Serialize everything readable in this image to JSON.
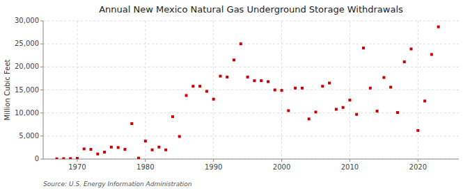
{
  "chart_data": {
    "type": "scatter",
    "title": "Annual New Mexico Natural  Gas Underground Storage Withdrawals",
    "ylabel": "Million Cubic Feet",
    "source": "Source: U.S. Energy Information Administration",
    "x": [
      1967,
      1968,
      1969,
      1970,
      1971,
      1972,
      1973,
      1974,
      1975,
      1976,
      1977,
      1978,
      1979,
      1980,
      1981,
      1982,
      1983,
      1984,
      1985,
      1986,
      1987,
      1988,
      1989,
      1990,
      1991,
      1992,
      1993,
      1994,
      1995,
      1996,
      1997,
      1998,
      1999,
      2000,
      2001,
      2002,
      2003,
      2004,
      2005,
      2006,
      2007,
      2008,
      2009,
      2010,
      2011,
      2012,
      2013,
      2014,
      2015,
      2016,
      2017,
      2018,
      2019,
      2020,
      2021,
      2022,
      2023
    ],
    "values": [
      50,
      80,
      100,
      150,
      2200,
      2100,
      1100,
      1500,
      2600,
      2500,
      2100,
      7700,
      200,
      3900,
      2000,
      2600,
      2000,
      9200,
      4900,
      13800,
      15800,
      15800,
      14700,
      13000,
      18000,
      17800,
      21500,
      25000,
      17800,
      17000,
      17000,
      16800,
      15000,
      14900,
      10500,
      15400,
      15400,
      8700,
      10200,
      15800,
      16500,
      10800,
      11200,
      12800,
      9700,
      24100,
      15400,
      10400,
      17700,
      15600,
      10100,
      21100,
      23900,
      6200,
      12600,
      22700,
      28700
    ],
    "color": "#cc0000",
    "marker": "square",
    "xlim": [
      1965,
      2026
    ],
    "ylim": [
      0,
      30000
    ],
    "xticks": [
      1970,
      1980,
      1990,
      2000,
      2010,
      2020
    ],
    "yticks": [
      0,
      {
        "value": 5000,
        "label": "5,000"
      },
      {
        "value": 10000,
        "label": "10,000"
      },
      {
        "value": 15000,
        "label": "15,000"
      },
      {
        "value": 20000,
        "label": "20,000"
      },
      {
        "value": 25000,
        "label": "25,000"
      },
      {
        "value": 30000,
        "label": "30,000"
      }
    ],
    "grid": true
  }
}
